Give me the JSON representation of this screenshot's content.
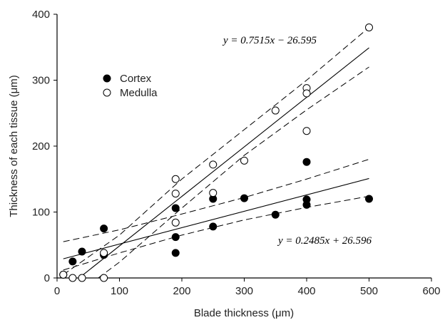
{
  "chart_data": {
    "type": "scatter",
    "xlabel": "Blade thickness (μm)",
    "ylabel": "Thickness of each tissue (μm)",
    "xlim": [
      0,
      600
    ],
    "ylim": [
      0,
      400
    ],
    "xticks": [
      "0",
      "100",
      "200",
      "300",
      "400",
      "500",
      "600"
    ],
    "yticks": [
      "0",
      "100",
      "200",
      "300",
      "400"
    ],
    "grid": false,
    "legend_position": "upper-left",
    "series": [
      {
        "name": "Cortex",
        "marker": "filled-circle",
        "color": "#000000",
        "points": [
          [
            10,
            5
          ],
          [
            25,
            25
          ],
          [
            40,
            40
          ],
          [
            75,
            35
          ],
          [
            75,
            75
          ],
          [
            190,
            38
          ],
          [
            190,
            62
          ],
          [
            190,
            106
          ],
          [
            250,
            120
          ],
          [
            250,
            78
          ],
          [
            300,
            121
          ],
          [
            350,
            96
          ],
          [
            400,
            176
          ],
          [
            400,
            119
          ],
          [
            400,
            111
          ],
          [
            500,
            120
          ]
        ],
        "fit": {
          "slope": 0.2485,
          "intercept": 26.596,
          "x_range": [
            10,
            500
          ],
          "ci_lower": [
            [
              10,
              12
            ],
            [
              100,
              38
            ],
            [
              200,
              65
            ],
            [
              300,
              88
            ],
            [
              400,
              107
            ],
            [
              500,
              124
            ]
          ],
          "ci_upper": [
            [
              10,
              55
            ],
            [
              100,
              73
            ],
            [
              200,
              97
            ],
            [
              300,
              122
            ],
            [
              400,
              150
            ],
            [
              500,
              180
            ]
          ]
        },
        "equation": "y = 0.2485x + 26.596"
      },
      {
        "name": "Medulla",
        "marker": "open-circle",
        "color": "#000000",
        "points": [
          [
            10,
            5
          ],
          [
            25,
            0
          ],
          [
            40,
            0
          ],
          [
            75,
            0
          ],
          [
            75,
            38
          ],
          [
            190,
            150
          ],
          [
            190,
            128
          ],
          [
            190,
            84
          ],
          [
            250,
            172
          ],
          [
            250,
            129
          ],
          [
            300,
            178
          ],
          [
            350,
            254
          ],
          [
            400,
            288
          ],
          [
            400,
            280
          ],
          [
            400,
            223
          ],
          [
            500,
            380
          ]
        ],
        "fit": {
          "slope": 0.7515,
          "intercept": -26.595,
          "x_range": [
            36,
            500
          ],
          "ci_lower": [
            [
              66,
              0
            ],
            [
              100,
              24
            ],
            [
              200,
              106
            ],
            [
              300,
              186
            ],
            [
              400,
              255
            ],
            [
              500,
              320
            ]
          ],
          "ci_upper": [
            [
              10,
              5
            ],
            [
              100,
              65
            ],
            [
              200,
              150
            ],
            [
              300,
              225
            ],
            [
              400,
              300
            ],
            [
              500,
              380
            ]
          ]
        },
        "equation": "y = 0.7515x − 26.595"
      }
    ]
  }
}
